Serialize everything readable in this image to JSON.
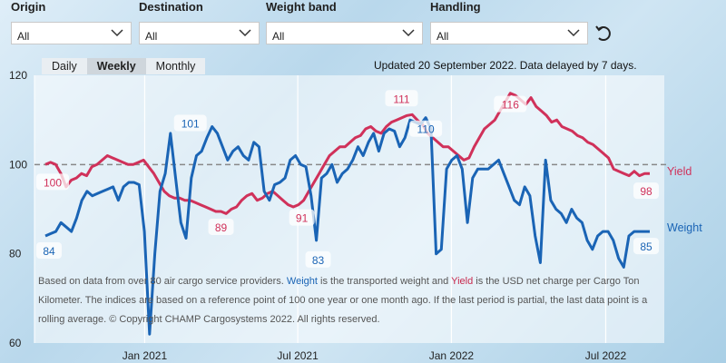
{
  "filters": [
    {
      "label": "Origin",
      "value": "All"
    },
    {
      "label": "Destination",
      "value": "All"
    },
    {
      "label": "Weight band",
      "value": "All"
    },
    {
      "label": "Handling",
      "value": "All"
    }
  ],
  "tabs": [
    "Daily",
    "Weekly",
    "Monthly"
  ],
  "active_tab": "Weekly",
  "updated_text": "Updated 20 September 2022. Data delayed by 7 days.",
  "note": {
    "part1": "Based on data from over 80 air cargo service providers. ",
    "weight_word": "Weight",
    "part2": " is the transported weight and ",
    "yield_word": "Yield",
    "part3": " is the USD net charge per Cargo Ton Kilometer. The indices are based on a reference point of 100 one year or one month ago. If the last period is partial, the last data point is a rolling average. © Copyright CHAMP Cargosystems 2022. All rights reserved."
  },
  "colors": {
    "weight": "#1a64b5",
    "yield": "#d0315a",
    "reference": "#888888"
  },
  "chart_data": {
    "type": "line",
    "x_start": "2020-09",
    "x_end": "2022-09",
    "x_ticks": [
      {
        "label": "Jan 2021",
        "pos": 0.175
      },
      {
        "label": "Jul 2021",
        "pos": 0.418
      },
      {
        "label": "Jan 2022",
        "pos": 0.662
      },
      {
        "label": "Jul 2022",
        "pos": 0.907
      }
    ],
    "y_ticks": [
      60,
      80,
      100,
      120
    ],
    "ylim": [
      60,
      120
    ],
    "reference_line": 100,
    "series": [
      {
        "name": "Yield",
        "values": [
          100,
          100.5,
          100,
          98,
          95,
          96.5,
          97,
          98,
          97.5,
          99.5,
          100,
          101,
          102,
          101.5,
          101,
          100.5,
          100,
          100,
          100.5,
          101,
          99.5,
          98,
          96,
          94,
          93,
          92.5,
          92.5,
          92,
          92,
          91.5,
          91,
          90.5,
          90,
          89.5,
          89.5,
          89,
          90,
          90.5,
          92,
          93,
          93.5,
          92,
          92.5,
          93.5,
          94,
          93,
          92,
          91,
          90.5,
          91,
          92,
          94,
          96,
          98,
          100,
          102,
          103,
          104,
          104,
          105,
          106,
          106.5,
          108,
          108.5,
          107.5,
          107,
          108.5,
          109.5,
          110,
          110.5,
          111,
          111.2,
          110,
          109,
          107,
          106,
          105,
          104,
          104,
          103,
          102,
          101,
          101.5,
          104,
          106,
          108,
          109,
          110,
          112,
          114,
          116,
          115.5,
          114.5,
          113.5,
          115,
          113,
          112,
          111,
          109.5,
          110,
          108.5,
          108,
          107.5,
          106.5,
          106,
          105,
          104.5,
          103.5,
          102.5,
          101.5,
          99,
          98.5,
          98,
          97.5,
          98.5,
          97.5,
          98,
          98
        ],
        "end_label": 98
      },
      {
        "name": "Weight",
        "values": [
          84,
          84.5,
          85,
          87,
          86,
          85,
          88,
          92,
          94,
          93,
          93.5,
          94,
          94.5,
          95,
          92,
          95,
          96,
          96,
          95.5,
          85,
          62,
          80,
          94,
          98,
          107,
          97,
          87,
          83.5,
          97,
          102,
          103,
          106,
          108.5,
          107,
          104,
          101,
          103,
          104,
          102,
          101,
          105,
          104,
          94,
          92,
          95.5,
          96,
          97,
          101,
          102,
          100,
          99.5,
          93,
          83,
          97,
          98,
          100,
          96,
          98,
          99,
          101,
          104,
          102,
          105,
          107,
          103,
          107,
          108,
          107.5,
          104,
          106,
          110,
          109.5,
          109,
          110.5,
          108,
          80,
          81,
          99,
          101,
          102,
          99,
          87,
          97,
          99,
          99,
          99,
          100,
          101,
          98,
          95,
          92,
          91,
          95,
          93,
          84,
          78,
          101,
          92,
          90,
          89,
          87,
          90,
          88,
          87,
          83,
          81,
          84,
          85,
          85,
          83,
          79,
          77,
          84,
          85,
          85,
          85,
          85
        ],
        "end_label": 85
      }
    ],
    "data_labels": [
      {
        "series": "Yield",
        "text": "100"
      },
      {
        "series": "Yield",
        "text": "89"
      },
      {
        "series": "Yield",
        "text": "91"
      },
      {
        "series": "Yield",
        "text": "111"
      },
      {
        "series": "Yield",
        "text": "116"
      },
      {
        "series": "Yield",
        "text": "98"
      },
      {
        "series": "Weight",
        "text": "84"
      },
      {
        "series": "Weight",
        "text": "101"
      },
      {
        "series": "Weight",
        "text": "83"
      },
      {
        "series": "Weight",
        "text": "110"
      },
      {
        "series": "Weight",
        "text": "85"
      }
    ],
    "legend": [
      {
        "name": "Yield",
        "color": "#d0315a"
      },
      {
        "name": "Weight",
        "color": "#1a64b5"
      }
    ]
  }
}
